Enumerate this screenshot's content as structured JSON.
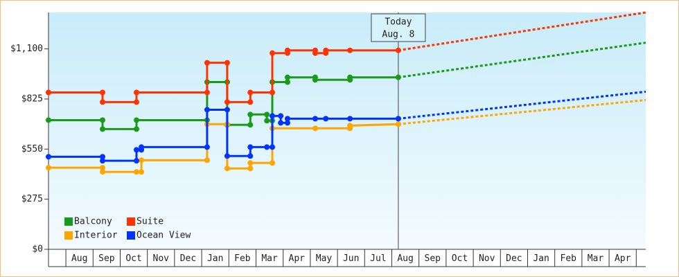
{
  "chart_data": {
    "type": "line",
    "step": true,
    "xlim": [
      0.36,
      22.35
    ],
    "ylim": [
      0,
      1300
    ],
    "yticks": [
      {
        "value": 0,
        "label": "$0"
      },
      {
        "value": 275,
        "label": "$275"
      },
      {
        "value": 550,
        "label": "$550"
      },
      {
        "value": 825,
        "label": "$825"
      },
      {
        "value": 1100,
        "label": "$1,100"
      }
    ],
    "xticks": [
      {
        "value": 1.5,
        "label": "Aug"
      },
      {
        "value": 2.5,
        "label": "Sep"
      },
      {
        "value": 3.5,
        "label": "Oct"
      },
      {
        "value": 4.5,
        "label": "Nov"
      },
      {
        "value": 5.5,
        "label": "Dec"
      },
      {
        "value": 6.5,
        "label": "Jan"
      },
      {
        "value": 7.5,
        "label": "Feb"
      },
      {
        "value": 8.5,
        "label": "Mar"
      },
      {
        "value": 9.5,
        "label": "Apr"
      },
      {
        "value": 10.5,
        "label": "May"
      },
      {
        "value": 11.5,
        "label": "Jun"
      },
      {
        "value": 12.5,
        "label": "Jul"
      },
      {
        "value": 13.5,
        "label": "Aug"
      },
      {
        "value": 14.5,
        "label": "Sep"
      },
      {
        "value": 15.5,
        "label": "Oct"
      },
      {
        "value": 16.5,
        "label": "Nov"
      },
      {
        "value": 17.5,
        "label": "Dec"
      },
      {
        "value": 18.5,
        "label": "Jan"
      },
      {
        "value": 19.5,
        "label": "Feb"
      },
      {
        "value": 20.5,
        "label": "Mar"
      },
      {
        "value": 21.5,
        "label": "Apr"
      }
    ],
    "annotation": {
      "x": 13.24,
      "title": "Today",
      "date": "Aug. 8"
    },
    "legend": "lower left",
    "series": [
      {
        "name": "Balcony",
        "color": "#1a9a1a",
        "x": [
          0.36,
          2.35,
          2.35,
          3.6,
          3.6,
          6.2,
          6.2,
          6.94,
          6.94,
          7.79,
          7.79,
          8.4,
          8.4,
          8.6,
          8.6,
          9.16,
          9.16,
          10.18,
          10.18,
          11.46,
          11.46,
          13.24
        ],
        "values": [
          709,
          709,
          660,
          660,
          709,
          709,
          918,
          918,
          683,
          683,
          740,
          740,
          706,
          706,
          918,
          918,
          944,
          944,
          930,
          930,
          944,
          944
        ],
        "projection": {
          "x": [
            13.24,
            22.35
          ],
          "values": [
            944,
            1134
          ]
        }
      },
      {
        "name": "Suite",
        "color": "#ff3300",
        "x": [
          0.36,
          2.35,
          2.35,
          3.6,
          3.6,
          6.2,
          6.2,
          6.94,
          6.94,
          7.79,
          7.79,
          8.6,
          8.6,
          9.16,
          9.16,
          10.18,
          10.18,
          10.57,
          10.57,
          11.46,
          13.24
        ],
        "values": [
          861,
          861,
          808,
          808,
          861,
          861,
          1024,
          1024,
          808,
          808,
          861,
          861,
          1077,
          1077,
          1092,
          1092,
          1077,
          1077,
          1092,
          1092,
          1092
        ],
        "projection": {
          "x": [
            13.24,
            22.35
          ],
          "values": [
            1092,
            1300
          ]
        }
      },
      {
        "name": "Interior",
        "color": "#ffa500",
        "x": [
          0.36,
          2.35,
          2.35,
          3.6,
          3.78,
          3.78,
          6.2,
          6.2,
          6.94,
          6.94,
          7.79,
          7.79,
          8.6,
          8.6,
          10.18,
          11.46,
          11.46,
          13.24
        ],
        "values": [
          448,
          448,
          425,
          425,
          425,
          489,
          489,
          687,
          687,
          444,
          444,
          474,
          474,
          664,
          664,
          664,
          679,
          687
        ],
        "projection": {
          "x": [
            13.24,
            22.35
          ],
          "values": [
            687,
            819
          ]
        }
      },
      {
        "name": "Ocean View",
        "color": "#0033ff",
        "x": [
          0.36,
          2.35,
          2.35,
          3.6,
          3.6,
          3.78,
          3.78,
          6.2,
          6.2,
          6.94,
          6.94,
          7.79,
          7.79,
          8.4,
          8.6,
          8.6,
          8.91,
          8.91,
          9.16,
          9.16,
          10.18,
          10.57,
          11.46,
          13.24
        ],
        "values": [
          508,
          508,
          486,
          486,
          546,
          546,
          561,
          561,
          766,
          766,
          512,
          512,
          561,
          561,
          561,
          732,
          732,
          694,
          694,
          717,
          717,
          717,
          717,
          717
        ],
        "projection": {
          "x": [
            13.24,
            22.35
          ],
          "values": [
            717,
            865
          ]
        }
      }
    ]
  }
}
